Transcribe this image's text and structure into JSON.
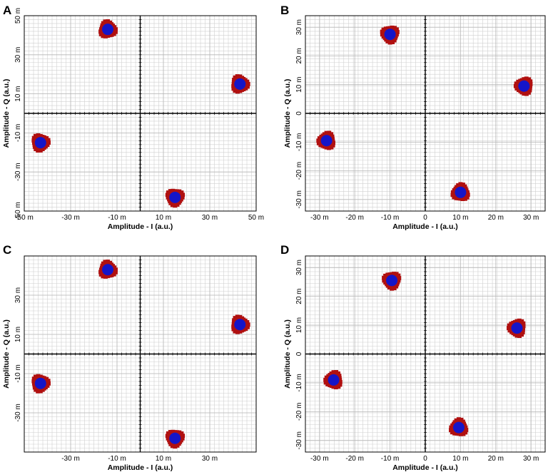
{
  "colors": {
    "outer": "#b01010",
    "inner": "#1515c8",
    "grid": "#d0d0d0",
    "axis": "#000000"
  },
  "chart_data": [
    {
      "panel": "A",
      "type": "scatter",
      "xlabel": "Amplitude - I (a.u.)",
      "ylabel": "Amplitude - Q (a.u.)",
      "xlim": [
        -50,
        50
      ],
      "ylim": [
        -50,
        50
      ],
      "x_ticks": [
        -50,
        -30,
        -10,
        10,
        30,
        50
      ],
      "x_tick_labels": [
        "-50 m",
        "-30 m",
        "-10 m",
        "10 m",
        "30 m",
        "50 m"
      ],
      "y_ticks": [
        50,
        30,
        10,
        -10,
        -30,
        -50
      ],
      "y_tick_labels": [
        "50 m",
        "30 m",
        "10 m",
        "-10 m",
        "-30 m",
        "-50 m"
      ],
      "points": [
        {
          "x": -14,
          "y": 43
        },
        {
          "x": 43,
          "y": 15
        },
        {
          "x": -43,
          "y": -15
        },
        {
          "x": 15,
          "y": -43
        }
      ]
    },
    {
      "panel": "B",
      "type": "scatter",
      "xlabel": "Amplitude - I (a.u.)",
      "ylabel": "Amplitude - Q (a.u.)",
      "xlim": [
        -34,
        34
      ],
      "ylim": [
        -34,
        34
      ],
      "x_ticks": [
        -30,
        -20,
        -10,
        0,
        10,
        20,
        30
      ],
      "x_tick_labels": [
        "-30 m",
        "-20 m",
        "-10 m",
        "0",
        "10 m",
        "20 m",
        "30 m"
      ],
      "y_ticks": [
        30,
        20,
        10,
        0,
        -10,
        -20,
        -30
      ],
      "y_tick_labels": [
        "30 m",
        "20 m",
        "10 m",
        "0",
        "-10 m",
        "-20 m",
        "-30 m"
      ],
      "points": [
        {
          "x": -10,
          "y": 27.5
        },
        {
          "x": 28,
          "y": 9.5
        },
        {
          "x": -28,
          "y": -9.5
        },
        {
          "x": 10,
          "y": -27.5
        }
      ]
    },
    {
      "panel": "C",
      "type": "scatter",
      "xlabel": "Amplitude - I (a.u.)",
      "ylabel": "Amplitude - Q (a.u.)",
      "xlim": [
        -50,
        50
      ],
      "ylim": [
        -50,
        50
      ],
      "x_ticks": [
        -30,
        -10,
        10,
        30
      ],
      "x_tick_labels": [
        "-30 m",
        "-10 m",
        "10 m",
        "30 m"
      ],
      "y_ticks": [
        30,
        10,
        -10,
        -30
      ],
      "y_tick_labels": [
        "30 m",
        "10 m",
        "-10 m",
        "-30 m"
      ],
      "points": [
        {
          "x": -14,
          "y": 43
        },
        {
          "x": 43,
          "y": 15
        },
        {
          "x": -43,
          "y": -15
        },
        {
          "x": 15,
          "y": -43
        }
      ]
    },
    {
      "panel": "D",
      "type": "scatter",
      "xlabel": "Amplitude - I (a.u.)",
      "ylabel": "Amplitude - Q (a.u.)",
      "xlim": [
        -34,
        34
      ],
      "ylim": [
        -34,
        34
      ],
      "x_ticks": [
        -30,
        -20,
        -10,
        0,
        10,
        20,
        30
      ],
      "x_tick_labels": [
        "-30 m",
        "-20 m",
        "-10 m",
        "0",
        "10 m",
        "20 m",
        "30 m"
      ],
      "y_ticks": [
        30,
        20,
        10,
        0,
        -10,
        -20,
        -30
      ],
      "y_tick_labels": [
        "30 m",
        "20 m",
        "10 m",
        "0",
        "-10 m",
        "-20 m",
        "-30 m"
      ],
      "points": [
        {
          "x": -9.5,
          "y": 25.5
        },
        {
          "x": 26,
          "y": 9
        },
        {
          "x": -26,
          "y": -9
        },
        {
          "x": 9.5,
          "y": -25.5
        }
      ]
    }
  ]
}
